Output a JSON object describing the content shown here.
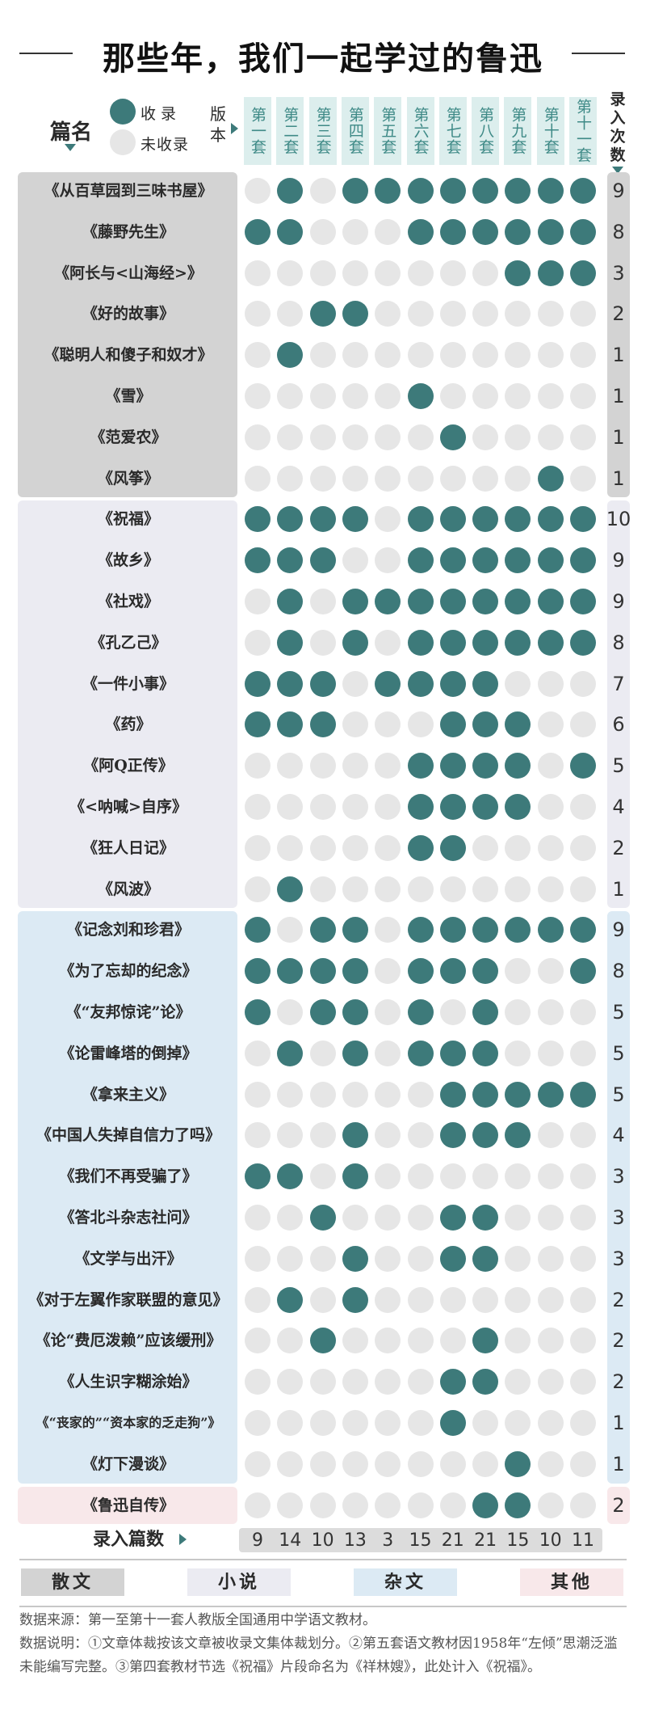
{
  "title": "那些年，我们一起学过的鲁迅",
  "header": {
    "pianming": "篇名",
    "banben": "版本",
    "luru_cishu": "录入次数",
    "legend_in": "收录",
    "legend_out": "未收录"
  },
  "colors": {
    "included": "#3d7a7a",
    "excluded": "#e6e6e6",
    "group_sanwen": "#d3d3d3",
    "group_xiaoshuo": "#ebebf2",
    "group_zawen": "#dceaf4",
    "group_qita": "#f8e8ea",
    "col_header": "#dceeed"
  },
  "chart_data": {
    "type": "table",
    "columns": [
      "第一套",
      "第二套",
      "第三套",
      "第四套",
      "第五套",
      "第六套",
      "第七套",
      "第八套",
      "第九套",
      "第十套",
      "第十一套"
    ],
    "groups": [
      {
        "name": "散文",
        "rows": [
          {
            "title": "《从百草园到三味书屋》",
            "included": [
              0,
              1,
              0,
              1,
              1,
              1,
              1,
              1,
              1,
              1,
              1
            ],
            "count": "9"
          },
          {
            "title": "《藤野先生》",
            "included": [
              1,
              1,
              0,
              0,
              0,
              1,
              1,
              1,
              1,
              1,
              1
            ],
            "count": "8"
          },
          {
            "title": "《阿长与<山海经>》",
            "included": [
              0,
              0,
              0,
              0,
              0,
              0,
              0,
              0,
              1,
              1,
              1
            ],
            "count": "3"
          },
          {
            "title": "《好的故事》",
            "included": [
              0,
              0,
              1,
              1,
              0,
              0,
              0,
              0,
              0,
              0,
              0
            ],
            "count": "2"
          },
          {
            "title": "《聪明人和傻子和奴才》",
            "included": [
              0,
              1,
              0,
              0,
              0,
              0,
              0,
              0,
              0,
              0,
              0
            ],
            "count": "1"
          },
          {
            "title": "《雪》",
            "included": [
              0,
              0,
              0,
              0,
              0,
              1,
              0,
              0,
              0,
              0,
              0
            ],
            "count": "1"
          },
          {
            "title": "《范爱农》",
            "included": [
              0,
              0,
              0,
              0,
              0,
              0,
              1,
              0,
              0,
              0,
              0
            ],
            "count": "1"
          },
          {
            "title": "《风筝》",
            "included": [
              0,
              0,
              0,
              0,
              0,
              0,
              0,
              0,
              0,
              1,
              0
            ],
            "count": "1"
          }
        ]
      },
      {
        "name": "小说",
        "rows": [
          {
            "title": "《祝福》",
            "included": [
              1,
              1,
              1,
              1,
              0,
              1,
              1,
              1,
              1,
              1,
              1
            ],
            "count": "10"
          },
          {
            "title": "《故乡》",
            "included": [
              1,
              1,
              1,
              0,
              0,
              1,
              1,
              1,
              1,
              1,
              1
            ],
            "count": "9"
          },
          {
            "title": "《社戏》",
            "included": [
              0,
              1,
              0,
              1,
              1,
              1,
              1,
              1,
              1,
              1,
              1
            ],
            "count": "9"
          },
          {
            "title": "《孔乙己》",
            "included": [
              0,
              1,
              0,
              1,
              0,
              1,
              1,
              1,
              1,
              1,
              1
            ],
            "count": "8"
          },
          {
            "title": "《一件小事》",
            "included": [
              1,
              1,
              1,
              0,
              1,
              1,
              1,
              1,
              0,
              0,
              0
            ],
            "count": "7"
          },
          {
            "title": "《药》",
            "included": [
              1,
              1,
              1,
              0,
              0,
              0,
              1,
              1,
              1,
              0,
              0
            ],
            "count": "6"
          },
          {
            "title": "《阿Q正传》",
            "included": [
              0,
              0,
              0,
              0,
              0,
              1,
              1,
              1,
              1,
              0,
              1
            ],
            "count": "5"
          },
          {
            "title": "《<呐喊>自序》",
            "included": [
              0,
              0,
              0,
              0,
              0,
              1,
              1,
              1,
              1,
              0,
              0
            ],
            "count": "4"
          },
          {
            "title": "《狂人日记》",
            "included": [
              0,
              0,
              0,
              0,
              0,
              1,
              1,
              0,
              0,
              0,
              0
            ],
            "count": "2"
          },
          {
            "title": "《风波》",
            "included": [
              0,
              1,
              0,
              0,
              0,
              0,
              0,
              0,
              0,
              0,
              0
            ],
            "count": "1"
          }
        ]
      },
      {
        "name": "杂文",
        "rows": [
          {
            "title": "《记念刘和珍君》",
            "included": [
              1,
              0,
              1,
              1,
              0,
              1,
              1,
              1,
              1,
              1,
              1
            ],
            "count": "9"
          },
          {
            "title": "《为了忘却的纪念》",
            "included": [
              1,
              1,
              1,
              1,
              0,
              1,
              1,
              1,
              0,
              0,
              1
            ],
            "count": "8"
          },
          {
            "title": "《“友邦惊诧”论》",
            "included": [
              1,
              0,
              1,
              1,
              0,
              1,
              0,
              1,
              0,
              0,
              0
            ],
            "count": "5"
          },
          {
            "title": "《论雷峰塔的倒掉》",
            "included": [
              0,
              1,
              0,
              1,
              0,
              1,
              1,
              1,
              0,
              0,
              0
            ],
            "count": "5"
          },
          {
            "title": "《拿来主义》",
            "included": [
              0,
              0,
              0,
              0,
              0,
              0,
              1,
              1,
              1,
              1,
              1
            ],
            "count": "5"
          },
          {
            "title": "《中国人失掉自信力了吗》",
            "included": [
              0,
              0,
              0,
              1,
              0,
              0,
              1,
              1,
              1,
              0,
              0
            ],
            "count": "4"
          },
          {
            "title": "《我们不再受骗了》",
            "included": [
              1,
              1,
              0,
              1,
              0,
              0,
              0,
              0,
              0,
              0,
              0
            ],
            "count": "3"
          },
          {
            "title": "《答北斗杂志社问》",
            "included": [
              0,
              0,
              1,
              0,
              0,
              0,
              1,
              1,
              0,
              0,
              0
            ],
            "count": "3"
          },
          {
            "title": "《文学与出汗》",
            "included": [
              0,
              0,
              0,
              1,
              0,
              0,
              1,
              1,
              0,
              0,
              0
            ],
            "count": "3"
          },
          {
            "title": "《对于左翼作家联盟的意见》",
            "included": [
              0,
              1,
              0,
              1,
              0,
              0,
              0,
              0,
              0,
              0,
              0
            ],
            "count": "2"
          },
          {
            "title": "《论“费厄泼赖”应该缓刑》",
            "included": [
              0,
              0,
              1,
              0,
              0,
              0,
              0,
              1,
              0,
              0,
              0
            ],
            "count": "2"
          },
          {
            "title": "《人生识字糊涂始》",
            "included": [
              0,
              0,
              0,
              0,
              0,
              0,
              1,
              1,
              0,
              0,
              0
            ],
            "count": "2"
          },
          {
            "title": "《“丧家的”“资本家的乏走狗”》",
            "included": [
              0,
              0,
              0,
              0,
              0,
              0,
              1,
              0,
              0,
              0,
              0
            ],
            "count": "1"
          },
          {
            "title": "《灯下漫谈》",
            "included": [
              0,
              0,
              0,
              0,
              0,
              0,
              0,
              0,
              1,
              0,
              0
            ],
            "count": "1"
          }
        ]
      },
      {
        "name": "其他",
        "rows": [
          {
            "title": "《鲁迅自传》",
            "included": [
              0,
              0,
              0,
              0,
              0,
              0,
              0,
              1,
              1,
              0,
              0
            ],
            "count": "2"
          }
        ]
      }
    ],
    "totals_label": "录入篇数",
    "totals": [
      "9",
      "14",
      "10",
      "13",
      "3",
      "15",
      "21",
      "21",
      "15",
      "10",
      "11"
    ]
  },
  "legend_groups": [
    "散文",
    "小说",
    "杂文",
    "其他"
  ],
  "notes": [
    "数据来源：第一至第十一套人教版全国通用中学语文教材。",
    "数据说明：①文章体裁按该文章被收录文集体裁划分。②第五套语文教材因1958年“左倾”思潮泛滥未能编写完整。③第四套教材节选《祝福》片段命名为《祥林嫂》，此处计入《祝福》。"
  ]
}
